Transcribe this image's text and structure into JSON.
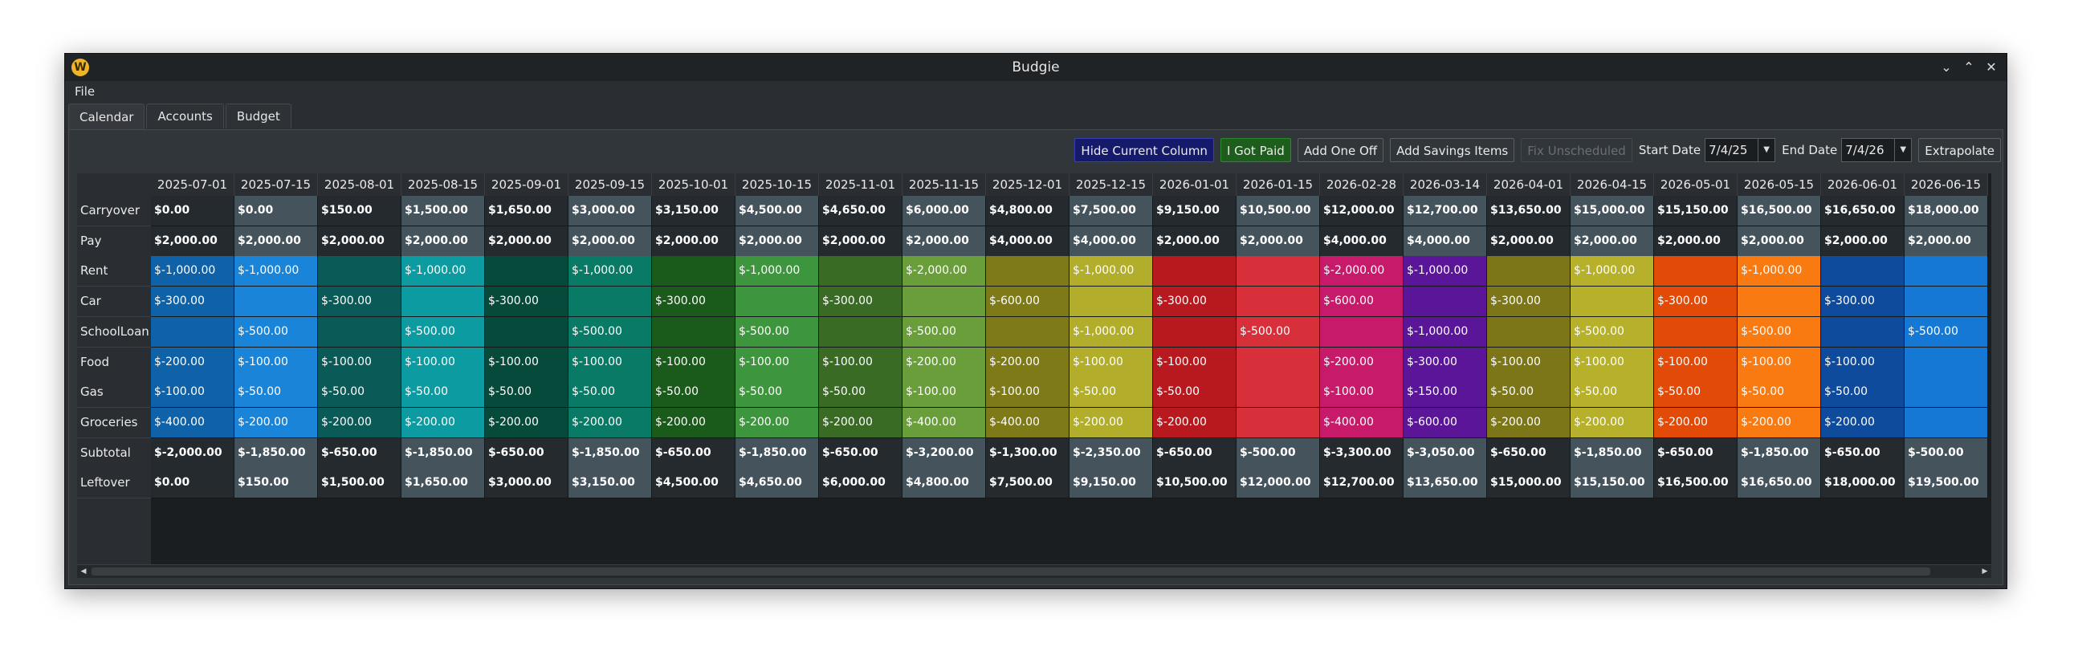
{
  "window": {
    "title": "Budgie",
    "icon": "budgie-logo-icon",
    "menu": [
      "File"
    ]
  },
  "tabs": [
    "Calendar",
    "Accounts",
    "Budget"
  ],
  "toolbar": {
    "hide_current_column": "Hide Current Column",
    "i_got_paid": "I Got Paid",
    "add_one_off": "Add One Off",
    "add_savings_items": "Add Savings Items",
    "fix_unscheduled": "Fix Unscheduled",
    "start_date_label": "Start Date",
    "start_date_value": "7/4/25",
    "end_date_label": "End Date",
    "end_date_value": "7/4/26",
    "extrapolate": "Extrapolate"
  },
  "calendar": {
    "columns": [
      "2025-07-01",
      "2025-07-15",
      "2025-08-01",
      "2025-08-15",
      "2025-09-01",
      "2025-09-15",
      "2025-10-01",
      "2025-10-15",
      "2025-11-01",
      "2025-11-15",
      "2025-12-01",
      "2025-12-15",
      "2026-01-01",
      "2026-01-15",
      "2026-02-28",
      "2026-03-14",
      "2026-04-01",
      "2026-04-15",
      "2026-05-01",
      "2026-05-15",
      "2026-06-01",
      "2026-06-15"
    ],
    "column_colors": [
      "#0f62a8",
      "#1a84d9",
      "#0a5a58",
      "#0b9ba0",
      "#054a3a",
      "#087a66",
      "#1a5a1a",
      "#3d953d",
      "#3a6b25",
      "#6a9e3a",
      "#7e7a18",
      "#b2ad2a",
      "#b8191e",
      "#d7303a",
      "#c81a6a",
      "#5a1599",
      "#7c7618",
      "#b7b02a",
      "#e24a08",
      "#fa7a12",
      "#0e4b9c",
      "#1478d4"
    ],
    "rows": [
      {
        "label": "Carryover",
        "type": "summary",
        "values": [
          "$0.00",
          "$0.00",
          "$150.00",
          "$1,500.00",
          "$1,650.00",
          "$3,000.00",
          "$3,150.00",
          "$4,500.00",
          "$4,650.00",
          "$6,000.00",
          "$4,800.00",
          "$7,500.00",
          "$9,150.00",
          "$10,500.00",
          "$12,000.00",
          "$12,700.00",
          "$13,650.00",
          "$15,000.00",
          "$15,150.00",
          "$16,500.00",
          "$16,650.00",
          "$18,000.00"
        ]
      },
      {
        "label": "Pay",
        "type": "summary",
        "values": [
          "$2,000.00",
          "$2,000.00",
          "$2,000.00",
          "$2,000.00",
          "$2,000.00",
          "$2,000.00",
          "$2,000.00",
          "$2,000.00",
          "$2,000.00",
          "$2,000.00",
          "$4,000.00",
          "$4,000.00",
          "$2,000.00",
          "$2,000.00",
          "$4,000.00",
          "$4,000.00",
          "$2,000.00",
          "$2,000.00",
          "$2,000.00",
          "$2,000.00",
          "$2,000.00",
          "$2,000.00"
        ]
      },
      {
        "label": "Rent",
        "type": "expense",
        "values": [
          "$-1,000.00",
          "$-1,000.00",
          "",
          "$-1,000.00",
          "",
          "$-1,000.00",
          "",
          "$-1,000.00",
          "",
          "$-2,000.00",
          "",
          "$-1,000.00",
          "",
          "",
          "$-2,000.00",
          "$-1,000.00",
          "",
          "$-1,000.00",
          "",
          "$-1,000.00",
          "",
          ""
        ]
      },
      {
        "label": "Car",
        "type": "expense",
        "values": [
          "$-300.00",
          "",
          "$-300.00",
          "",
          "$-300.00",
          "",
          "$-300.00",
          "",
          "$-300.00",
          "",
          "$-600.00",
          "",
          "$-300.00",
          "",
          "$-600.00",
          "",
          "$-300.00",
          "",
          "$-300.00",
          "",
          "$-300.00",
          ""
        ]
      },
      {
        "label": "SchoolLoan",
        "type": "expense",
        "values": [
          "",
          "$-500.00",
          "",
          "$-500.00",
          "",
          "$-500.00",
          "",
          "$-500.00",
          "",
          "$-500.00",
          "",
          "$-1,000.00",
          "",
          "$-500.00",
          "",
          "$-1,000.00",
          "",
          "$-500.00",
          "",
          "$-500.00",
          "",
          "$-500.00"
        ]
      },
      {
        "label": "Food",
        "type": "expense",
        "values": [
          "$-200.00",
          "$-100.00",
          "$-100.00",
          "$-100.00",
          "$-100.00",
          "$-100.00",
          "$-100.00",
          "$-100.00",
          "$-100.00",
          "$-200.00",
          "$-200.00",
          "$-100.00",
          "$-100.00",
          "",
          "$-200.00",
          "$-300.00",
          "$-100.00",
          "$-100.00",
          "$-100.00",
          "$-100.00",
          "$-100.00",
          ""
        ]
      },
      {
        "label": "Gas",
        "type": "expense",
        "values": [
          "$-100.00",
          "$-50.00",
          "$-50.00",
          "$-50.00",
          "$-50.00",
          "$-50.00",
          "$-50.00",
          "$-50.00",
          "$-50.00",
          "$-100.00",
          "$-100.00",
          "$-50.00",
          "$-50.00",
          "",
          "$-100.00",
          "$-150.00",
          "$-50.00",
          "$-50.00",
          "$-50.00",
          "$-50.00",
          "$-50.00",
          ""
        ]
      },
      {
        "label": "Groceries",
        "type": "expense",
        "values": [
          "$-400.00",
          "$-200.00",
          "$-200.00",
          "$-200.00",
          "$-200.00",
          "$-200.00",
          "$-200.00",
          "$-200.00",
          "$-200.00",
          "$-400.00",
          "$-400.00",
          "$-200.00",
          "$-200.00",
          "",
          "$-400.00",
          "$-600.00",
          "$-200.00",
          "$-200.00",
          "$-200.00",
          "$-200.00",
          "$-200.00",
          ""
        ]
      },
      {
        "label": "Subtotal",
        "type": "summary",
        "values": [
          "$-2,000.00",
          "$-1,850.00",
          "$-650.00",
          "$-1,850.00",
          "$-650.00",
          "$-1,850.00",
          "$-650.00",
          "$-1,850.00",
          "$-650.00",
          "$-3,200.00",
          "$-1,300.00",
          "$-2,350.00",
          "$-650.00",
          "$-500.00",
          "$-3,300.00",
          "$-3,050.00",
          "$-650.00",
          "$-1,850.00",
          "$-650.00",
          "$-1,850.00",
          "$-650.00",
          "$-500.00"
        ]
      },
      {
        "label": "Leftover",
        "type": "summary",
        "values": [
          "$0.00",
          "$150.00",
          "$1,500.00",
          "$1,650.00",
          "$3,000.00",
          "$3,150.00",
          "$4,500.00",
          "$4,650.00",
          "$6,000.00",
          "$4,800.00",
          "$7,500.00",
          "$9,150.00",
          "$10,500.00",
          "$12,000.00",
          "$12,700.00",
          "$13,650.00",
          "$15,000.00",
          "$15,150.00",
          "$16,500.00",
          "$16,650.00",
          "$18,000.00",
          "$19,500.00"
        ]
      }
    ],
    "summary_colors": [
      "#252a2e",
      "#45535c"
    ]
  }
}
